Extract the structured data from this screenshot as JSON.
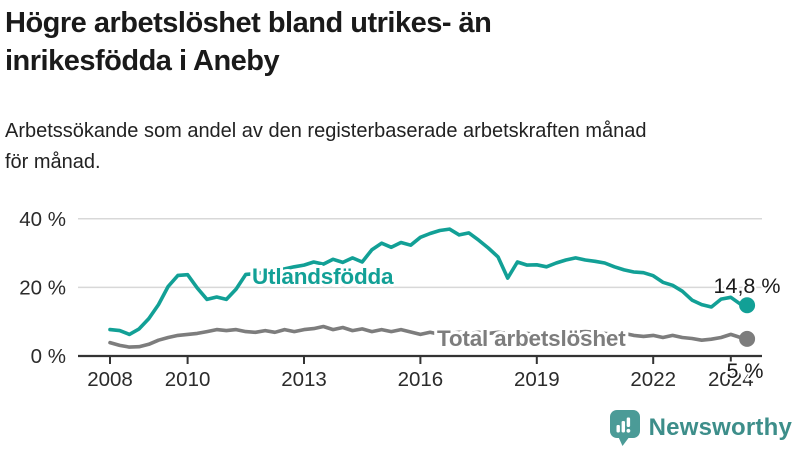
{
  "header": {
    "title_lines": [
      "Högre arbetslöshet bland utrikes- än",
      "inrikesfödda i Aneby"
    ],
    "subtitle_lines": [
      "Arbetssökande som andel av den registerbaserade arbetskraften månad",
      "för månad."
    ]
  },
  "chart_data": {
    "type": "line",
    "title": "Högre arbetslöshet bland utrikes- än inrikesfödda i Aneby",
    "subtitle": "Arbetssökande som andel av den registerbaserade arbetskraften månad för månad.",
    "unit": "%",
    "grid": "horizontal",
    "legend_position": "inline-labels",
    "xlim": [
      2007.7,
      2024.8
    ],
    "ylim": [
      0,
      42
    ],
    "y_ticks": [
      0,
      20,
      40
    ],
    "y_tick_labels": [
      "0 %",
      "20 %",
      "40 %"
    ],
    "x_ticks": [
      2008,
      2010,
      2013,
      2016,
      2019,
      2022,
      2024
    ],
    "x_tick_labels": [
      "2008",
      "2010",
      "2013",
      "2016",
      "2019",
      "2022",
      "2024"
    ],
    "x": [
      2008,
      2008.25,
      2008.5,
      2008.75,
      2009,
      2009.25,
      2009.5,
      2009.75,
      2010,
      2010.25,
      2010.5,
      2010.75,
      2011,
      2011.25,
      2011.5,
      2011.75,
      2012,
      2012.25,
      2012.5,
      2012.75,
      2013,
      2013.25,
      2013.5,
      2013.75,
      2014,
      2014.25,
      2014.5,
      2014.75,
      2015,
      2015.25,
      2015.5,
      2015.75,
      2016,
      2016.25,
      2016.5,
      2016.75,
      2017,
      2017.25,
      2017.5,
      2017.75,
      2018,
      2018.25,
      2018.5,
      2018.75,
      2019,
      2019.25,
      2019.5,
      2019.75,
      2020,
      2020.25,
      2020.5,
      2020.75,
      2021,
      2021.25,
      2021.5,
      2021.75,
      2022,
      2022.25,
      2022.5,
      2022.75,
      2023,
      2023.25,
      2023.5,
      2023.75,
      2024,
      2024.25,
      2024.42
    ],
    "series": [
      {
        "name": "Total arbetslöshet",
        "color": "#7d7d7d",
        "end_label": "5 %",
        "end_value": 5.0,
        "values": [
          3.9,
          3.1,
          2.6,
          2.7,
          3.4,
          4.6,
          5.4,
          6,
          6.3,
          6.6,
          7.1,
          7.7,
          7.4,
          7.7,
          7.1,
          6.9,
          7.4,
          6.9,
          7.7,
          7.1,
          7.7,
          8,
          8.6,
          7.7,
          8.3,
          7.4,
          7.9,
          7.1,
          7.7,
          7.1,
          7.7,
          7,
          6.3,
          6.9,
          6.3,
          6.6,
          6.9,
          6.6,
          6.9,
          6.6,
          6.9,
          6.6,
          6.3,
          6.6,
          6.3,
          6.6,
          6.3,
          6.6,
          6.9,
          7.1,
          6.9,
          6.6,
          6.3,
          6.6,
          6,
          5.7,
          6,
          5.4,
          6,
          5.4,
          5.1,
          4.6,
          4.9,
          5.4,
          6.3,
          5.4,
          5
        ]
      },
      {
        "name": "Utlandsfödda",
        "color": "#12a096",
        "end_label": "14,8 %",
        "end_value": 14.8,
        "values": [
          7.7,
          7.4,
          6.3,
          7.9,
          10.9,
          15,
          20.3,
          23.5,
          23.7,
          19.8,
          16.5,
          17.2,
          16.5,
          19.5,
          23.8,
          24,
          24.5,
          25,
          25.4,
          26,
          26.5,
          27.4,
          26.8,
          28.2,
          27.3,
          28.6,
          27.4,
          31,
          32.9,
          31.7,
          33.1,
          32.3,
          34.6,
          35.7,
          36.6,
          37,
          35.3,
          35.9,
          33.8,
          31.5,
          28.9,
          22.7,
          27.4,
          26.5,
          26.6,
          26,
          27.1,
          28,
          28.6,
          28,
          27.6,
          27.1,
          26,
          25.1,
          24.5,
          24.3,
          23.4,
          21.5,
          20.6,
          18.9,
          16.3,
          15,
          14.3,
          16.6,
          17.1,
          15.1,
          14.8
        ]
      }
    ],
    "colors": {
      "axis": "#333333",
      "gridline": "#d8d8d8",
      "tick_label": "#2b2b2b",
      "annotation": "#1a1a1a"
    }
  },
  "footer": {
    "brand": "Newsworthy",
    "brand_color": "#3d8e8a",
    "icon": "newsworthy-speech-bubble-chart",
    "icon_color": "#4b9b97"
  }
}
